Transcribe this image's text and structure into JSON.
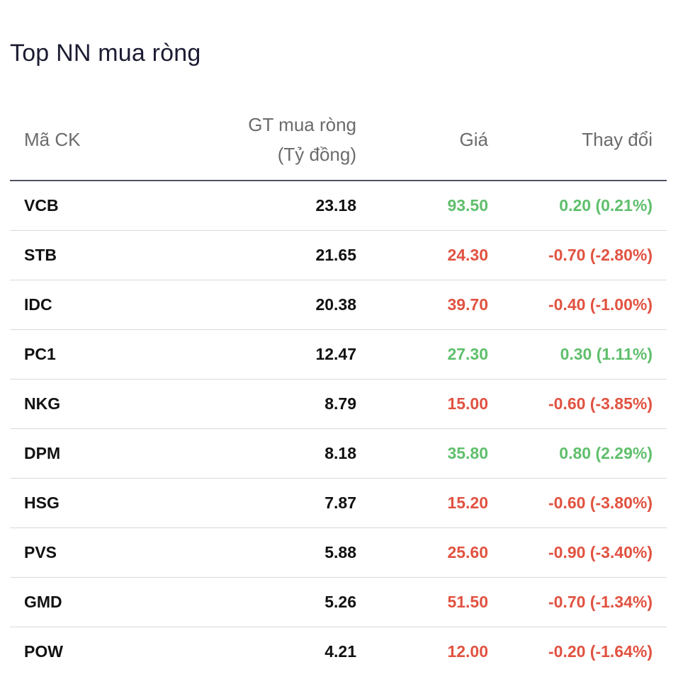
{
  "title": "Top NN mua ròng",
  "headers": {
    "code": "Mã CK",
    "value_line1": "GT mua ròng",
    "value_line2": "(Tỷ đồng)",
    "price": "Giá",
    "change": "Thay đổi"
  },
  "colors": {
    "up": "#5fbf6c",
    "down": "#e15241"
  },
  "rows": [
    {
      "code": "VCB",
      "value": "23.18",
      "price": "93.50",
      "change": "0.20 (0.21%)",
      "trend": "up"
    },
    {
      "code": "STB",
      "value": "21.65",
      "price": "24.30",
      "change": "-0.70 (-2.80%)",
      "trend": "down"
    },
    {
      "code": "IDC",
      "value": "20.38",
      "price": "39.70",
      "change": "-0.40 (-1.00%)",
      "trend": "down"
    },
    {
      "code": "PC1",
      "value": "12.47",
      "price": "27.30",
      "change": "0.30 (1.11%)",
      "trend": "up"
    },
    {
      "code": "NKG",
      "value": "8.79",
      "price": "15.00",
      "change": "-0.60 (-3.85%)",
      "trend": "down"
    },
    {
      "code": "DPM",
      "value": "8.18",
      "price": "35.80",
      "change": "0.80 (2.29%)",
      "trend": "up"
    },
    {
      "code": "HSG",
      "value": "7.87",
      "price": "15.20",
      "change": "-0.60 (-3.80%)",
      "trend": "down"
    },
    {
      "code": "PVS",
      "value": "5.88",
      "price": "25.60",
      "change": "-0.90 (-3.40%)",
      "trend": "down"
    },
    {
      "code": "GMD",
      "value": "5.26",
      "price": "51.50",
      "change": "-0.70 (-1.34%)",
      "trend": "down"
    },
    {
      "code": "POW",
      "value": "4.21",
      "price": "12.00",
      "change": "-0.20 (-1.64%)",
      "trend": "down"
    }
  ]
}
